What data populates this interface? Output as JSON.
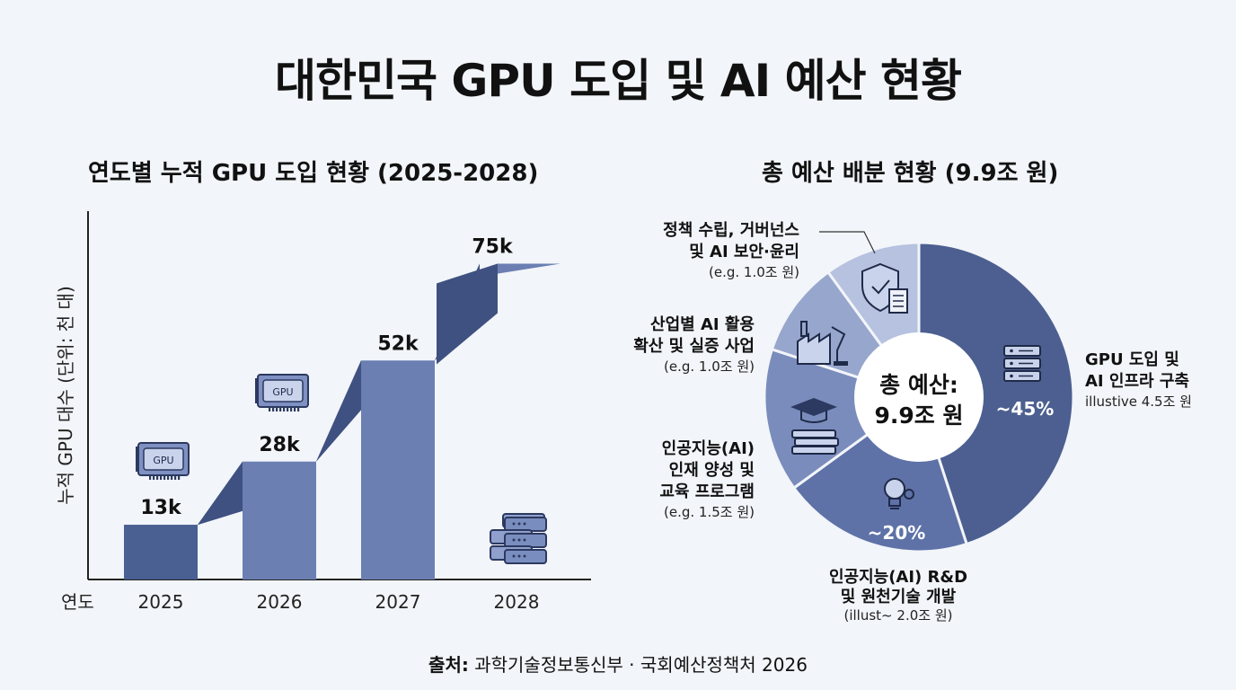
{
  "title": "대한민국 GPU 도입 및 AI 예산 현황",
  "source": {
    "prefix": "출처:",
    "text": " 과학기술정보통신부 · 국회예산정책처 2026"
  },
  "chart_data": [
    {
      "type": "bar",
      "title": "연도별 누적 GPU 도입 현황 (2025-2028)",
      "xlabel": "연도",
      "ylabel": "누적 GPU 대수 (단위: 천 대)",
      "categories": [
        "2025",
        "2026",
        "2027",
        "2028"
      ],
      "values": [
        13,
        28,
        52,
        75
      ],
      "value_labels": [
        "13k",
        "28k",
        "52k",
        "75k"
      ],
      "ylim": [
        0,
        80
      ],
      "grid": false,
      "colors": {
        "bar": "#4a5f92",
        "bar_light": "#6b7fb3",
        "step": "#3e5180"
      },
      "icons": [
        "gpu-card-icon",
        "gpu-card-icon",
        "server-rack-icon"
      ]
    },
    {
      "type": "pie",
      "title": "총 예산 배분 현황 (9.9조 원)",
      "center_label": [
        "총 예산:",
        "9.9조 원"
      ],
      "slices": [
        {
          "label_lines": [
            "GPU 도입 및",
            "AI 인프라 구축"
          ],
          "note": "illustive 4.5조 원",
          "value": 45,
          "pct_label": "~45%",
          "color": "#4c5f90",
          "icon": "server-icon"
        },
        {
          "label_lines": [
            "인공지능(AI) R&D",
            "및 원천기술 개발"
          ],
          "note": "(illust~ 2.0조 원)",
          "value": 20,
          "pct_label": "~20%",
          "color": "#5e72a8",
          "icon": "lightbulb-gear-icon"
        },
        {
          "label_lines": [
            "인공지능(AI)",
            "인재 양성 및",
            "교육 프로그램"
          ],
          "note": "(e.g. 1.5조 원)",
          "value": 15,
          "pct_label": "",
          "color": "#7a8cbc",
          "icon": "graduation-cap-books-icon"
        },
        {
          "label_lines": [
            "산업별 AI 활용",
            "확산 및 실증 사업"
          ],
          "note": "(e.g. 1.0조 원)",
          "value": 10,
          "pct_label": "",
          "color": "#97a6cd",
          "icon": "factory-robot-icon"
        },
        {
          "label_lines": [
            "정책 수립, 거버넌스",
            "및 AI 보안·윤리"
          ],
          "note": "(e.g. 1.0조 원)",
          "value": 10,
          "pct_label": "",
          "color": "#b6c2df",
          "icon": "shield-document-icon"
        }
      ],
      "legend": "callouts"
    }
  ]
}
